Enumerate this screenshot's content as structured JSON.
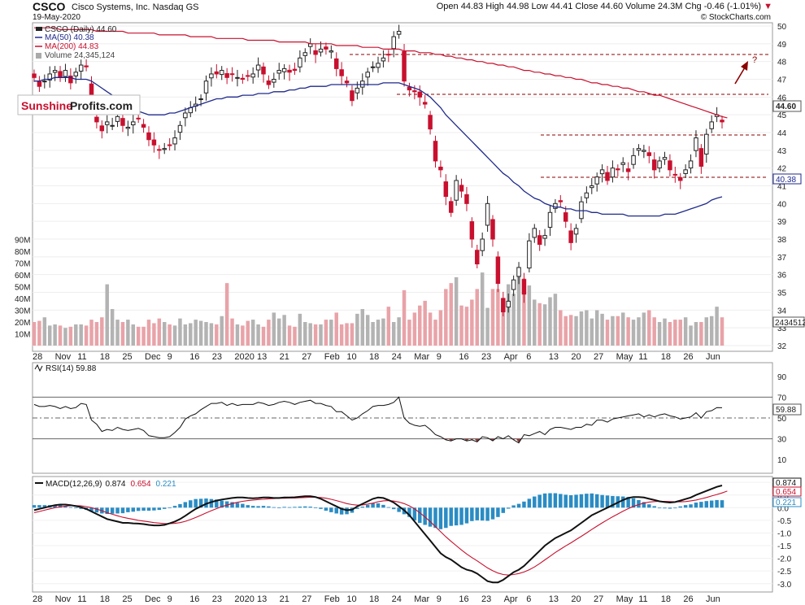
{
  "header": {
    "ticker": "CSCO",
    "company": "Cisco Systems, Inc.  Nasdaq GS",
    "date": "19-May-2020",
    "ohlc_text": "Open 44.83  High 44.98  Low 44.41  Close 44.60  Volume 24.3M  Chg -0.46 (-1.01%)",
    "down_marker": "▼",
    "source": "© StockCharts.com"
  },
  "legend": {
    "line1": "CSCO (Daily) 44.60",
    "line2": "MA(50) 40.38",
    "line3": "MA(200) 44.83",
    "line4": "Volume 24,345,124"
  },
  "watermark": {
    "part1": "Sunshine",
    "part2": "Profits.com"
  },
  "annotation": {
    "question": "?"
  },
  "colors": {
    "up": "#222222",
    "down": "#c8102e",
    "ma50": "#1f2a8c",
    "ma200": "#c8102e",
    "vol_up": "#b3b3b3",
    "vol_down": "#e8a3a8",
    "macd_hist": "#2a8cc4",
    "rsi_fill": "#8a3b3b"
  },
  "rsi_panel": {
    "label": "RSI(14) 59.88",
    "last_label": "59.88"
  },
  "macd_panel": {
    "label_prefix": "MACD(12,26,9)",
    "macd": "0.874",
    "signal": "0.654",
    "hist": "0.221"
  },
  "chart_data": [
    {
      "type": "candlestick",
      "title": "CSCO",
      "y_range": [
        32,
        50
      ],
      "price_ticks": [
        "50",
        "49",
        "48",
        "47",
        "46",
        "45",
        "44",
        "43",
        "42",
        "41",
        "40",
        "39",
        "38",
        "37",
        "36",
        "35",
        "34",
        "33",
        "32"
      ],
      "volume_ticks": [
        "90M",
        "80M",
        "70M",
        "60M",
        "50M",
        "40M",
        "30M",
        "20M",
        "10M"
      ],
      "volume_last_label": "24345124",
      "last_close_label": "44.60",
      "ma50_last_label": "40.38",
      "x_labels": [
        "28",
        "Nov",
        "11",
        "18",
        "25",
        "Dec",
        "9",
        "16",
        "23",
        "2020",
        "13",
        "21",
        "27",
        "Feb",
        "10",
        "18",
        "24",
        "Mar",
        "9",
        "16",
        "23",
        "Apr",
        "6",
        "13",
        "20",
        "27",
        "May",
        "11",
        "18",
        "26",
        "Jun"
      ],
      "close": [
        47.1,
        46.6,
        46.9,
        47.3,
        47.5,
        47.1,
        47.5,
        46.8,
        47.4,
        47.8,
        47.7,
        45.3,
        44.6,
        44.1,
        44.6,
        44.4,
        44.9,
        44.4,
        44.3,
        44.6,
        44.8,
        44.3,
        43.6,
        43.3,
        43.0,
        43.1,
        43.3,
        43.7,
        44.4,
        45.1,
        45.4,
        45.6,
        45.9,
        46.9,
        47.3,
        47.3,
        47.5,
        47.1,
        47.3,
        47.1,
        47.0,
        47.2,
        47.3,
        47.8,
        47.3,
        46.7,
        47.0,
        47.5,
        47.6,
        47.4,
        47.5,
        48.2,
        48.5,
        49.0,
        48.4,
        48.7,
        48.7,
        48.6,
        47.6,
        47.2,
        46.8,
        45.8,
        46.5,
        46.9,
        47.4,
        47.7,
        47.9,
        48.2,
        48.4,
        49.4,
        49.7,
        46.9,
        46.4,
        46.3,
        46.0,
        45.6,
        44.2,
        42.4,
        41.9,
        40.4,
        39.5,
        41.3,
        40.7,
        40.0,
        38.0,
        36.6,
        38.0,
        40.0,
        38.0,
        35.5,
        33.9,
        34.5,
        35.7,
        36.4,
        34.9,
        37.9,
        38.6,
        37.7,
        38.2,
        39.5,
        40.0,
        40.1,
        39.0,
        37.8,
        38.6,
        40.1,
        40.6,
        41.0,
        41.5,
        41.9,
        41.3,
        42.0,
        41.9,
        42.3,
        41.8,
        42.7,
        43.1,
        43.0,
        42.7,
        41.9,
        42.4,
        42.6,
        41.9,
        41.6,
        41.3,
        41.9,
        42.4,
        43.7,
        42.1,
        43.9,
        44.6,
        45.0,
        44.6
      ],
      "ma50": [
        46.9,
        46.9,
        47.0,
        47.0,
        47.1,
        47.1,
        47.1,
        47.1,
        47.0,
        47.0,
        47.0,
        46.9,
        46.7,
        46.5,
        46.3,
        46.1,
        45.9,
        45.7,
        45.5,
        45.3,
        45.2,
        45.1,
        45.0,
        45.0,
        45.0,
        45.0,
        45.1,
        45.1,
        45.2,
        45.3,
        45.4,
        45.5,
        45.6,
        45.7,
        45.8,
        45.9,
        45.9,
        46.0,
        46.0,
        46.0,
        46.1,
        46.1,
        46.1,
        46.2,
        46.2,
        46.2,
        46.3,
        46.3,
        46.3,
        46.4,
        46.4,
        46.5,
        46.5,
        46.6,
        46.6,
        46.6,
        46.6,
        46.7,
        46.7,
        46.7,
        46.7,
        46.7,
        46.7,
        46.7,
        46.7,
        46.7,
        46.7,
        46.8,
        46.8,
        46.8,
        46.8,
        46.7,
        46.6,
        46.5,
        46.4,
        46.2,
        46.0,
        45.7,
        45.4,
        45.0,
        44.7,
        44.4,
        44.1,
        43.8,
        43.5,
        43.2,
        42.9,
        42.6,
        42.3,
        42.0,
        41.7,
        41.5,
        41.2,
        41.0,
        40.7,
        40.5,
        40.3,
        40.2,
        40.0,
        39.9,
        39.8,
        39.8,
        39.7,
        39.7,
        39.6,
        39.6,
        39.6,
        39.5,
        39.5,
        39.4,
        39.4,
        39.4,
        39.4,
        39.4,
        39.3,
        39.3,
        39.3,
        39.3,
        39.3,
        39.3,
        39.3,
        39.4,
        39.4,
        39.4,
        39.5,
        39.6,
        39.7,
        39.8,
        39.9,
        40.0,
        40.2,
        40.3,
        40.38
      ],
      "ma200": [
        49.9,
        49.9,
        49.9,
        49.9,
        49.9,
        49.8,
        49.8,
        49.8,
        49.8,
        49.8,
        49.8,
        49.8,
        49.7,
        49.7,
        49.7,
        49.7,
        49.7,
        49.7,
        49.6,
        49.6,
        49.6,
        49.6,
        49.6,
        49.6,
        49.5,
        49.5,
        49.5,
        49.5,
        49.5,
        49.5,
        49.4,
        49.4,
        49.4,
        49.4,
        49.4,
        49.3,
        49.3,
        49.3,
        49.3,
        49.3,
        49.3,
        49.2,
        49.2,
        49.2,
        49.2,
        49.2,
        49.2,
        49.1,
        49.1,
        49.1,
        49.1,
        49.1,
        49.1,
        49.0,
        49.0,
        49.0,
        49.0,
        49.0,
        48.9,
        48.9,
        48.9,
        48.9,
        48.9,
        48.8,
        48.8,
        48.8,
        48.8,
        48.7,
        48.7,
        48.7,
        48.7,
        48.6,
        48.6,
        48.6,
        48.5,
        48.5,
        48.5,
        48.4,
        48.4,
        48.3,
        48.3,
        48.2,
        48.2,
        48.1,
        48.1,
        48.0,
        48.0,
        47.9,
        47.9,
        47.8,
        47.8,
        47.7,
        47.7,
        47.6,
        47.5,
        47.5,
        47.4,
        47.4,
        47.3,
        47.3,
        47.2,
        47.2,
        47.1,
        47.1,
        47.0,
        47.0,
        46.9,
        46.8,
        46.8,
        46.7,
        46.7,
        46.6,
        46.6,
        46.5,
        46.5,
        46.4,
        46.3,
        46.3,
        46.2,
        46.1,
        46.1,
        46.0,
        45.9,
        45.8,
        45.7,
        45.6,
        45.5,
        45.4,
        45.3,
        45.2,
        45.1,
        45.0,
        44.9,
        44.83
      ],
      "volume_m": [
        20,
        21,
        24,
        17,
        18,
        17,
        15,
        16,
        18,
        18,
        17,
        22,
        20,
        24,
        52,
        31,
        22,
        20,
        22,
        18,
        16,
        16,
        22,
        19,
        23,
        20,
        18,
        17,
        23,
        18,
        19,
        22,
        21,
        20,
        19,
        18,
        25,
        53,
        23,
        18,
        17,
        21,
        22,
        18,
        16,
        22,
        28,
        23,
        26,
        17,
        16,
        27,
        20,
        19,
        18,
        18,
        22,
        22,
        28,
        18,
        19,
        19,
        27,
        31,
        26,
        20,
        22,
        23,
        33,
        20,
        24,
        47,
        22,
        28,
        34,
        38,
        28,
        22,
        30,
        48,
        53,
        58,
        34,
        33,
        39,
        48,
        62,
        32,
        48,
        48,
        30,
        52,
        44,
        62,
        57,
        51,
        39,
        36,
        35,
        41,
        44,
        30,
        25,
        26,
        25,
        29,
        30,
        23,
        30,
        27,
        22,
        25,
        25,
        28,
        24,
        22,
        24,
        28,
        30,
        24,
        20,
        23,
        20,
        22,
        22,
        24,
        17,
        20,
        20,
        24,
        25,
        33,
        24,
        48,
        33,
        30,
        24
      ]
    },
    {
      "type": "line",
      "title": "RSI(14) 59.88",
      "y_range": [
        0,
        100
      ],
      "y_ticks": [
        "90",
        "70",
        "50",
        "30",
        "10"
      ],
      "levels": [
        70,
        50,
        30
      ],
      "values": [
        63,
        61,
        61,
        62,
        61,
        59,
        61,
        59,
        60,
        64,
        63,
        48,
        44,
        37,
        39,
        38,
        41,
        39,
        38,
        39,
        40,
        38,
        33,
        32,
        31,
        31,
        32,
        36,
        41,
        49,
        52,
        54,
        58,
        61,
        64,
        64,
        65,
        62,
        64,
        62,
        63,
        63,
        63,
        65,
        64,
        62,
        63,
        65,
        66,
        65,
        63,
        65,
        66,
        67,
        64,
        64,
        62,
        61,
        56,
        56,
        52,
        48,
        50,
        54,
        57,
        61,
        62,
        62,
        63,
        65,
        70,
        50,
        45,
        43,
        42,
        43,
        39,
        34,
        32,
        29,
        28,
        30,
        30,
        28,
        29,
        27,
        32,
        31,
        28,
        32,
        30,
        33,
        29,
        26,
        34,
        33,
        35,
        37,
        34,
        39,
        41,
        41,
        40,
        39,
        41,
        41,
        44,
        43,
        48,
        48,
        46,
        49,
        50,
        51,
        52,
        53,
        54,
        51,
        53,
        51,
        53,
        54,
        52,
        51,
        49,
        50,
        51,
        55,
        50,
        56,
        57,
        60,
        59.88
      ]
    },
    {
      "type": "line",
      "title": "MACD(12,26,9)",
      "y_range": [
        -3.2,
        1.1
      ],
      "y_ticks": [
        "1.0",
        "0.5",
        "0.0",
        "-0.5",
        "-1.0",
        "-1.5",
        "-2.0",
        "-2.5",
        "-3.0"
      ],
      "y_tick_values": [
        1.0,
        0.5,
        0.0,
        -0.5,
        -1.0,
        -1.5,
        -2.0,
        -2.5,
        -3.0
      ],
      "series": [
        {
          "name": "MACD",
          "values": [
            -0.1,
            -0.05,
            0.0,
            0.05,
            0.1,
            0.12,
            0.12,
            0.1,
            0.06,
            0.02,
            -0.05,
            -0.15,
            -0.25,
            -0.35,
            -0.45,
            -0.5,
            -0.55,
            -0.6,
            -0.6,
            -0.62,
            -0.63,
            -0.65,
            -0.68,
            -0.7,
            -0.7,
            -0.68,
            -0.62,
            -0.55,
            -0.45,
            -0.32,
            -0.18,
            -0.05,
            0.05,
            0.15,
            0.22,
            0.28,
            0.32,
            0.35,
            0.38,
            0.4,
            0.4,
            0.38,
            0.37,
            0.38,
            0.4,
            0.4,
            0.38,
            0.38,
            0.4,
            0.4,
            0.41,
            0.43,
            0.45,
            0.45,
            0.42,
            0.35,
            0.25,
            0.15,
            0.05,
            -0.05,
            -0.1,
            -0.08,
            0.05,
            0.15,
            0.25,
            0.35,
            0.4,
            0.38,
            0.3,
            0.2,
            0.05,
            -0.1,
            -0.3,
            -0.55,
            -0.8,
            -1.05,
            -1.3,
            -1.55,
            -1.8,
            -1.95,
            -2.05,
            -2.2,
            -2.35,
            -2.45,
            -2.5,
            -2.6,
            -2.75,
            -2.9,
            -2.95,
            -2.95,
            -2.85,
            -2.7,
            -2.55,
            -2.45,
            -2.3,
            -2.1,
            -1.9,
            -1.7,
            -1.5,
            -1.35,
            -1.2,
            -1.1,
            -1.0,
            -0.9,
            -0.75,
            -0.6,
            -0.45,
            -0.3,
            -0.2,
            -0.1,
            0.0,
            0.1,
            0.2,
            0.3,
            0.38,
            0.42,
            0.42,
            0.4,
            0.35,
            0.3,
            0.25,
            0.22,
            0.2,
            0.22,
            0.28,
            0.34,
            0.4,
            0.5,
            0.58,
            0.66,
            0.74,
            0.82,
            0.874
          ]
        },
        {
          "name": "Signal",
          "values": [
            -0.2,
            -0.15,
            -0.1,
            -0.05,
            0.0,
            0.03,
            0.06,
            0.08,
            0.08,
            0.07,
            0.04,
            0.0,
            -0.06,
            -0.12,
            -0.2,
            -0.26,
            -0.32,
            -0.38,
            -0.42,
            -0.46,
            -0.5,
            -0.53,
            -0.56,
            -0.59,
            -0.61,
            -0.63,
            -0.63,
            -0.62,
            -0.59,
            -0.54,
            -0.47,
            -0.39,
            -0.3,
            -0.21,
            -0.12,
            -0.04,
            0.04,
            0.1,
            0.16,
            0.21,
            0.25,
            0.28,
            0.3,
            0.32,
            0.33,
            0.35,
            0.36,
            0.37,
            0.37,
            0.38,
            0.38,
            0.39,
            0.4,
            0.41,
            0.41,
            0.4,
            0.37,
            0.33,
            0.28,
            0.22,
            0.16,
            0.12,
            0.1,
            0.11,
            0.14,
            0.18,
            0.23,
            0.27,
            0.28,
            0.26,
            0.22,
            0.16,
            0.07,
            -0.05,
            -0.2,
            -0.37,
            -0.55,
            -0.75,
            -0.95,
            -1.15,
            -1.33,
            -1.5,
            -1.67,
            -1.83,
            -1.97,
            -2.1,
            -2.24,
            -2.38,
            -2.49,
            -2.58,
            -2.64,
            -2.66,
            -2.64,
            -2.6,
            -2.54,
            -2.45,
            -2.34,
            -2.21,
            -2.06,
            -1.92,
            -1.77,
            -1.64,
            -1.51,
            -1.39,
            -1.26,
            -1.13,
            -1.0,
            -0.86,
            -0.73,
            -0.6,
            -0.48,
            -0.36,
            -0.25,
            -0.14,
            -0.04,
            0.05,
            0.12,
            0.18,
            0.22,
            0.24,
            0.25,
            0.25,
            0.24,
            0.23,
            0.23,
            0.24,
            0.27,
            0.3,
            0.35,
            0.4,
            0.46,
            0.52,
            0.58,
            0.654
          ]
        }
      ]
    }
  ]
}
